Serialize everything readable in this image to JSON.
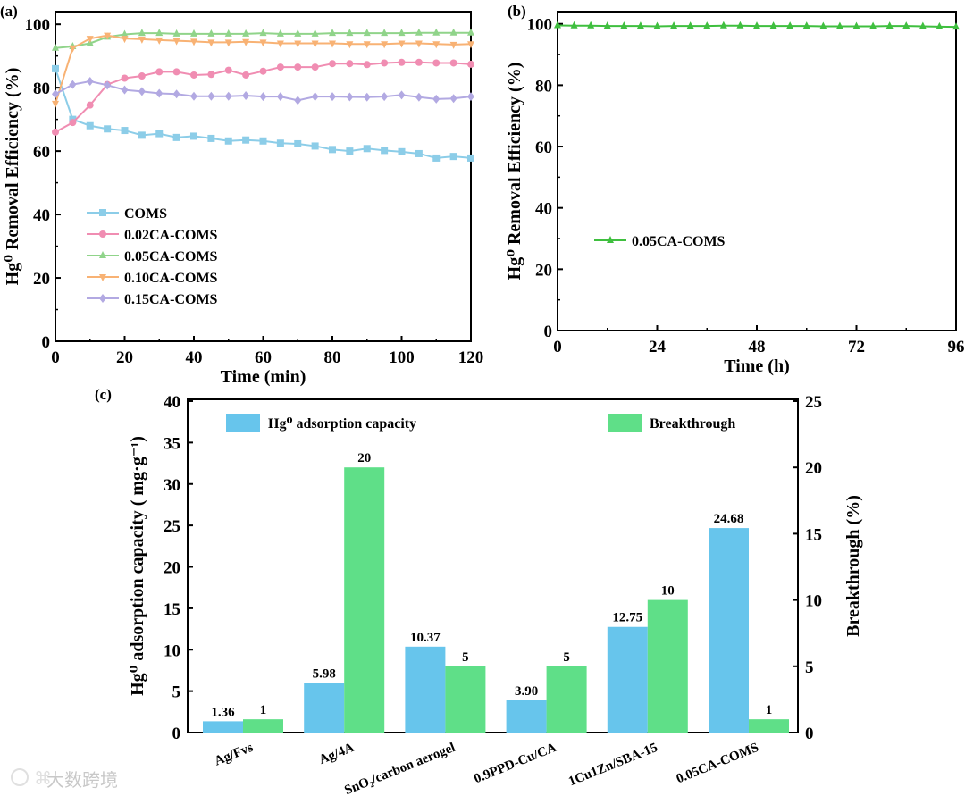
{
  "watermark": "大数跨境",
  "chart_data": [
    {
      "panel": "(a)",
      "type": "line",
      "xlabel": "Time (min)",
      "ylabel": "Hg⁰ Removal Efficiency (%)",
      "xlim": [
        0,
        120
      ],
      "ylim": [
        0,
        104
      ],
      "xticks": [
        0,
        20,
        40,
        60,
        80,
        100,
        120
      ],
      "yticks": [
        0,
        20,
        40,
        60,
        80,
        100
      ],
      "legend_position": "lower-left",
      "x": [
        0,
        5,
        10,
        15,
        20,
        25,
        30,
        35,
        40,
        45,
        50,
        55,
        60,
        65,
        70,
        75,
        80,
        85,
        90,
        95,
        100,
        105,
        110,
        115,
        120
      ],
      "series": [
        {
          "name": "COMS",
          "color": "#8ccde8",
          "marker": "square",
          "values": [
            86,
            70,
            68,
            67,
            66.5,
            65,
            65.5,
            64.3,
            64.7,
            64,
            63.2,
            63.5,
            63.2,
            62.5,
            62.3,
            61.6,
            60.5,
            60,
            60.8,
            60.2,
            59.8,
            59.2,
            57.8,
            58.3,
            57.8
          ]
        },
        {
          "name": "0.02CA-COMS",
          "color": "#f08db2",
          "marker": "circle",
          "values": [
            66,
            69,
            74.5,
            81,
            83,
            83.7,
            85,
            85,
            84,
            84.2,
            85.5,
            84,
            85.2,
            86.5,
            86.5,
            86.5,
            87.6,
            87.6,
            87.3,
            87.8,
            88,
            88,
            87.8,
            87.8,
            87.4
          ]
        },
        {
          "name": "0.05CA-COMS",
          "color": "#90d48a",
          "marker": "triangle-up",
          "values": [
            92.5,
            93,
            94,
            96,
            96.8,
            97.2,
            97.2,
            97,
            97,
            97,
            97,
            97,
            97.2,
            97,
            97,
            97,
            97.2,
            97.2,
            97.2,
            97.2,
            97.2,
            97.3,
            97.3,
            97.3,
            97.3
          ]
        },
        {
          "name": "0.10CA-COMS",
          "color": "#f8b274",
          "marker": "triangle-down",
          "values": [
            75,
            92.5,
            95.5,
            96.5,
            95.5,
            95.3,
            95,
            94.8,
            94.6,
            94.3,
            94.3,
            94.5,
            94.3,
            94,
            94,
            94,
            94,
            93.8,
            93.8,
            93.8,
            94,
            94,
            93.8,
            93.6,
            93.8
          ]
        },
        {
          "name": "0.15CA-COMS",
          "color": "#b2a9e2",
          "marker": "diamond",
          "values": [
            78,
            81,
            82,
            80.8,
            79.3,
            78.8,
            78.2,
            78,
            77.3,
            77.3,
            77.3,
            77.5,
            77.2,
            77.2,
            76,
            77.2,
            77.2,
            77.1,
            77,
            77.2,
            77.7,
            77,
            76.4,
            76.6,
            77.2
          ]
        }
      ]
    },
    {
      "panel": "(b)",
      "type": "line",
      "xlabel": "Time (h)",
      "ylabel": "Hg⁰ Removal Efficiency (%)",
      "xlim": [
        0,
        96
      ],
      "ylim": [
        0,
        104
      ],
      "xticks": [
        0,
        24,
        48,
        72,
        96
      ],
      "yticks": [
        0,
        20,
        40,
        60,
        80,
        100
      ],
      "legend_position": "center-left",
      "x": [
        0,
        4,
        8,
        12,
        16,
        20,
        24,
        28,
        32,
        36,
        40,
        44,
        48,
        52,
        56,
        60,
        64,
        68,
        72,
        76,
        80,
        84,
        88,
        92,
        96
      ],
      "series": [
        {
          "name": "0.05CA-COMS",
          "color": "#3fbf3f",
          "marker": "triangle-up",
          "values": [
            99.5,
            99.4,
            99.4,
            99.3,
            99.3,
            99.3,
            99.2,
            99.3,
            99.3,
            99.3,
            99.4,
            99.4,
            99.3,
            99.3,
            99.3,
            99.3,
            99.2,
            99.2,
            99.2,
            99.2,
            99.3,
            99.3,
            99.2,
            99.1,
            99
          ]
        }
      ]
    },
    {
      "panel": "(c)",
      "type": "bar",
      "categories": [
        "Ag/Fvs",
        "Ag/4A",
        "SnO₂/carbon aerogel",
        "0.9PPD-Cu/CA",
        "1Cu1Zn/SBA-15",
        "0.05CA-COMS"
      ],
      "ylabel": "Hg⁰ adsorption capacity ( mg·g⁻¹)",
      "y2label": "Breakthrough (%)",
      "ylim": [
        0,
        40
      ],
      "y2lim": [
        0,
        25
      ],
      "yticks": [
        0,
        5,
        10,
        15,
        20,
        25,
        30,
        35,
        40
      ],
      "y2ticks": [
        0,
        5,
        10,
        15,
        20,
        25
      ],
      "legend_position": "top",
      "series": [
        {
          "name": "Hg⁰ adsorption capacity",
          "axis": "left",
          "color": "#67c5ec",
          "values": [
            1.36,
            5.98,
            10.37,
            3.9,
            12.75,
            24.68
          ],
          "labels": [
            "1.36",
            "5.98",
            "10.37",
            "3.90",
            "12.75",
            "24.68"
          ]
        },
        {
          "name": "Breakthrough",
          "axis": "right",
          "color": "#5fdf88",
          "values": [
            1,
            20,
            5,
            5,
            10,
            1
          ],
          "labels": [
            "1",
            "20",
            "5",
            "5",
            "10",
            "1"
          ]
        }
      ]
    }
  ]
}
